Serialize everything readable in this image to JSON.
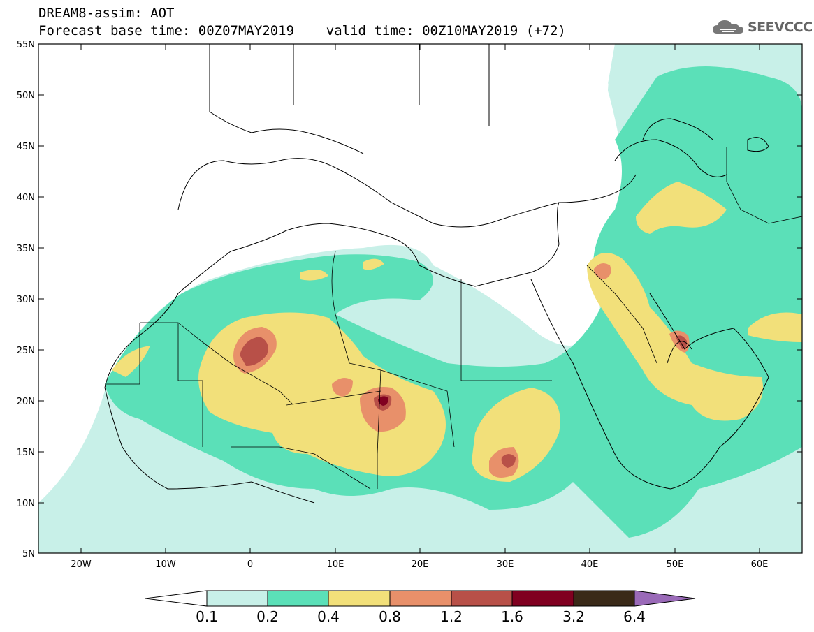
{
  "header": {
    "title_line1": "DREAM8-assim: AOT",
    "title_line2": "Forecast base time: 00Z07MAY2019    valid time: 00Z10MAY2019 (+72)"
  },
  "logo": {
    "text": "SEEVCCC",
    "icon": "cloud-icon"
  },
  "map": {
    "lat_labels": [
      "55N",
      "50N",
      "45N",
      "40N",
      "35N",
      "30N",
      "25N",
      "20N",
      "15N",
      "10N",
      "5N"
    ],
    "lon_labels": [
      "20W",
      "10W",
      "0",
      "10E",
      "20E",
      "30E",
      "40E",
      "50E",
      "60E"
    ],
    "extent": {
      "lon_min": -25,
      "lon_max": 65,
      "lat_min": 5,
      "lat_max": 55
    }
  },
  "colorbar": {
    "labels": [
      "0.1",
      "0.2",
      "0.4",
      "0.8",
      "1.2",
      "1.6",
      "3.2",
      "6.4"
    ],
    "colors": [
      "#ffffff",
      "#c8f0e8",
      "#5be0b8",
      "#f2e07a",
      "#e8906a",
      "#b85048",
      "#800020",
      "#3a2a18",
      "#9a6ab8"
    ]
  }
}
